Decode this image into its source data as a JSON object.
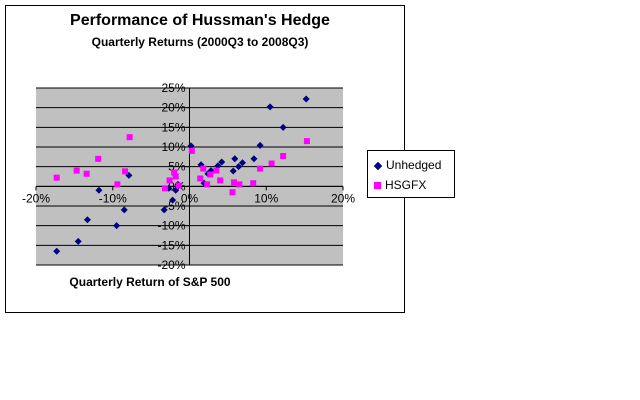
{
  "chart_data": {
    "type": "scatter",
    "title": "Performance of Hussman's Hedge",
    "subtitle": "Quarterly Returns (2000Q3 to 2008Q3)",
    "xlabel": "Quarterly Return of S&P 500",
    "ylabel": "",
    "xlim": [
      -20,
      20
    ],
    "ylim": [
      -20,
      25
    ],
    "x_ticks": [
      -20,
      -10,
      0,
      10,
      20
    ],
    "y_ticks": [
      25,
      20,
      15,
      10,
      5,
      0,
      -5,
      -10,
      -15,
      -20
    ],
    "x_tick_labels": [
      "-20%",
      "-10%",
      "0%",
      "10%",
      "20%"
    ],
    "y_tick_labels": [
      "25%",
      "20%",
      "15%",
      "10%",
      "5%",
      "0%",
      "-5%",
      "-10%",
      "-15%",
      "-20%"
    ],
    "grid": "horizontal",
    "plot_background": "#c0c0c0",
    "legend_position": "right",
    "series": [
      {
        "name": "Unhedged",
        "marker": "diamond",
        "color": "#000080",
        "points": [
          [
            -17.3,
            -16.5
          ],
          [
            -14.5,
            -14.0
          ],
          [
            -13.3,
            -8.5
          ],
          [
            -11.8,
            -1.0
          ],
          [
            -9.5,
            -10.0
          ],
          [
            -8.5,
            -6.0
          ],
          [
            -7.9,
            2.8
          ],
          [
            -3.3,
            -6.0
          ],
          [
            -2.7,
            -0.5
          ],
          [
            -2.2,
            -3.5
          ],
          [
            -1.8,
            -1.0
          ],
          [
            -1.5,
            0.5
          ],
          [
            0.2,
            10.3
          ],
          [
            1.5,
            5.5
          ],
          [
            1.9,
            0.8
          ],
          [
            2.4,
            3.2
          ],
          [
            2.8,
            4.0
          ],
          [
            3.7,
            5.2
          ],
          [
            4.2,
            6.2
          ],
          [
            5.7,
            3.9
          ],
          [
            5.9,
            7.0
          ],
          [
            6.4,
            5.0
          ],
          [
            6.9,
            6.0
          ],
          [
            8.4,
            7.0
          ],
          [
            9.2,
            10.4
          ],
          [
            10.5,
            20.2
          ],
          [
            12.2,
            15.0
          ],
          [
            15.2,
            22.2
          ]
        ]
      },
      {
        "name": "HSGFX",
        "marker": "square",
        "color": "#ff00ff",
        "points": [
          [
            -17.3,
            2.2
          ],
          [
            -14.7,
            4.0
          ],
          [
            -13.4,
            3.2
          ],
          [
            -11.9,
            7.0
          ],
          [
            -9.4,
            0.5
          ],
          [
            -8.4,
            3.8
          ],
          [
            -7.8,
            12.5
          ],
          [
            -3.2,
            -0.5
          ],
          [
            -2.6,
            1.5
          ],
          [
            -2.0,
            3.5
          ],
          [
            -1.8,
            2.5
          ],
          [
            -1.4,
            0.2
          ],
          [
            0.3,
            9.0
          ],
          [
            1.4,
            2.0
          ],
          [
            1.8,
            4.5
          ],
          [
            2.3,
            0.5
          ],
          [
            2.7,
            3.0
          ],
          [
            3.5,
            4.0
          ],
          [
            4.0,
            1.5
          ],
          [
            5.6,
            -1.5
          ],
          [
            5.8,
            1.0
          ],
          [
            6.5,
            0.5
          ],
          [
            8.3,
            0.8
          ],
          [
            9.2,
            4.5
          ],
          [
            10.7,
            5.8
          ],
          [
            12.2,
            7.7
          ],
          [
            15.3,
            11.5
          ]
        ]
      }
    ]
  }
}
